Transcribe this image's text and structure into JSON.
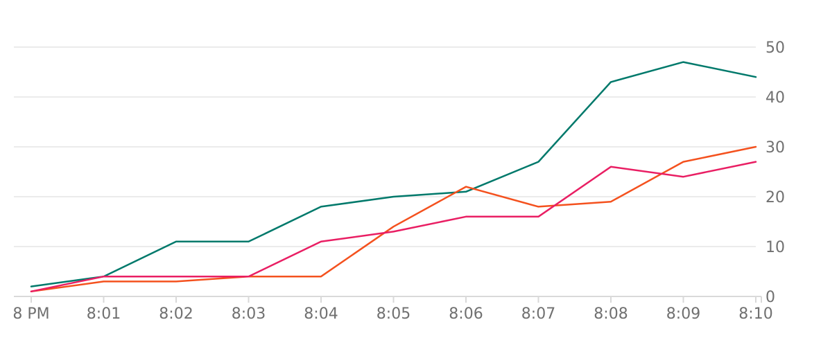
{
  "chart_data": {
    "type": "line",
    "x": [
      "8 PM",
      "8:01",
      "8:02",
      "8:03",
      "8:04",
      "8:05",
      "8:06",
      "8:07",
      "8:08",
      "8:09",
      "8:10"
    ],
    "xlabel": "",
    "ylabel": "",
    "ylim": [
      0,
      50
    ],
    "yticks": [
      "0",
      "10",
      "20",
      "30",
      "40",
      "50"
    ],
    "y_axis_side": "right",
    "grid": true,
    "legend": "none",
    "series": [
      {
        "color": "#00796b",
        "values": [
          2,
          4,
          11,
          11,
          18,
          20,
          21,
          27,
          43,
          47,
          44
        ]
      },
      {
        "color": "#f4511e",
        "values": [
          1,
          3,
          3,
          4,
          4,
          14,
          22,
          18,
          19,
          27,
          30
        ]
      },
      {
        "color": "#e91e63",
        "values": [
          1,
          4,
          4,
          4,
          11,
          13,
          16,
          16,
          26,
          24,
          27
        ]
      }
    ]
  }
}
